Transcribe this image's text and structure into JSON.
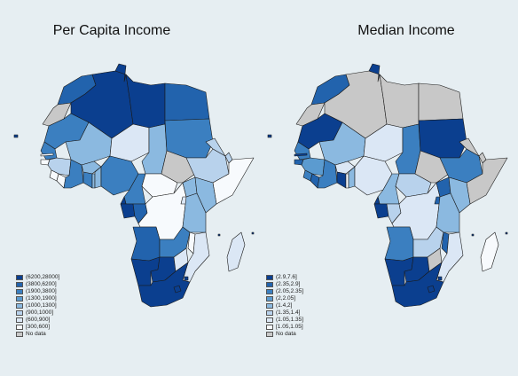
{
  "maps": [
    {
      "title": "Per Capita Income",
      "legend": [
        {
          "label": "(6200,28000]",
          "color": "#0b3f8f"
        },
        {
          "label": "(3800,6200]",
          "color": "#2263ad"
        },
        {
          "label": "(1900,3800]",
          "color": "#3b7fc0"
        },
        {
          "label": "(1300,1900]",
          "color": "#5b9bd0"
        },
        {
          "label": "(1000,1300]",
          "color": "#8bb9e0"
        },
        {
          "label": "(900,1000]",
          "color": "#b8d2ec"
        },
        {
          "label": "(600,900]",
          "color": "#dbe7f5"
        },
        {
          "label": "[300,600]",
          "color": "#f7fafd"
        },
        {
          "label": "No data",
          "color": "#c8c8c8"
        }
      ]
    },
    {
      "title": "Median Income",
      "legend": [
        {
          "label": "(2.9,7.6]",
          "color": "#0b3f8f"
        },
        {
          "label": "(2.35,2.9]",
          "color": "#2263ad"
        },
        {
          "label": "(2.05,2.35]",
          "color": "#3b7fc0"
        },
        {
          "label": "(2,2.05]",
          "color": "#5b9bd0"
        },
        {
          "label": "(1.4,2]",
          "color": "#8bb9e0"
        },
        {
          "label": "(1.35,1.4]",
          "color": "#b8d2ec"
        },
        {
          "label": "(1.05,1.35]",
          "color": "#dbe7f5"
        },
        {
          "label": "[1.05,1.05]",
          "color": "#f7fafd"
        },
        {
          "label": "No data",
          "color": "#c8c8c8"
        }
      ]
    }
  ]
}
